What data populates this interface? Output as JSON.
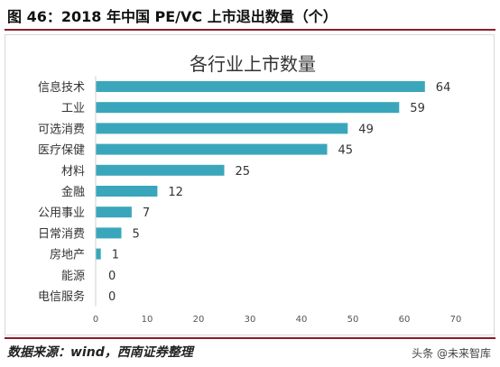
{
  "figure_title": "图 46：2018 年中国 PE/VC 上市退出数量（个）",
  "source_note": "数据来源：wind，西南证券整理",
  "watermark": "头条 @未来智库",
  "chart_data": {
    "type": "bar",
    "orientation": "horizontal",
    "title": "各行业上市数量",
    "categories": [
      "信息技术",
      "工业",
      "可选消费",
      "医疗保健",
      "材料",
      "金融",
      "公用事业",
      "日常消费",
      "房地产",
      "能源",
      "电信服务"
    ],
    "values": [
      64,
      59,
      49,
      45,
      25,
      12,
      7,
      5,
      1,
      0,
      0
    ],
    "xlim": [
      0,
      70
    ],
    "xticks": [
      0,
      10,
      20,
      30,
      40,
      50,
      60,
      70
    ],
    "grid": false,
    "legend": "none",
    "bar_color": "#3aa6bb"
  }
}
